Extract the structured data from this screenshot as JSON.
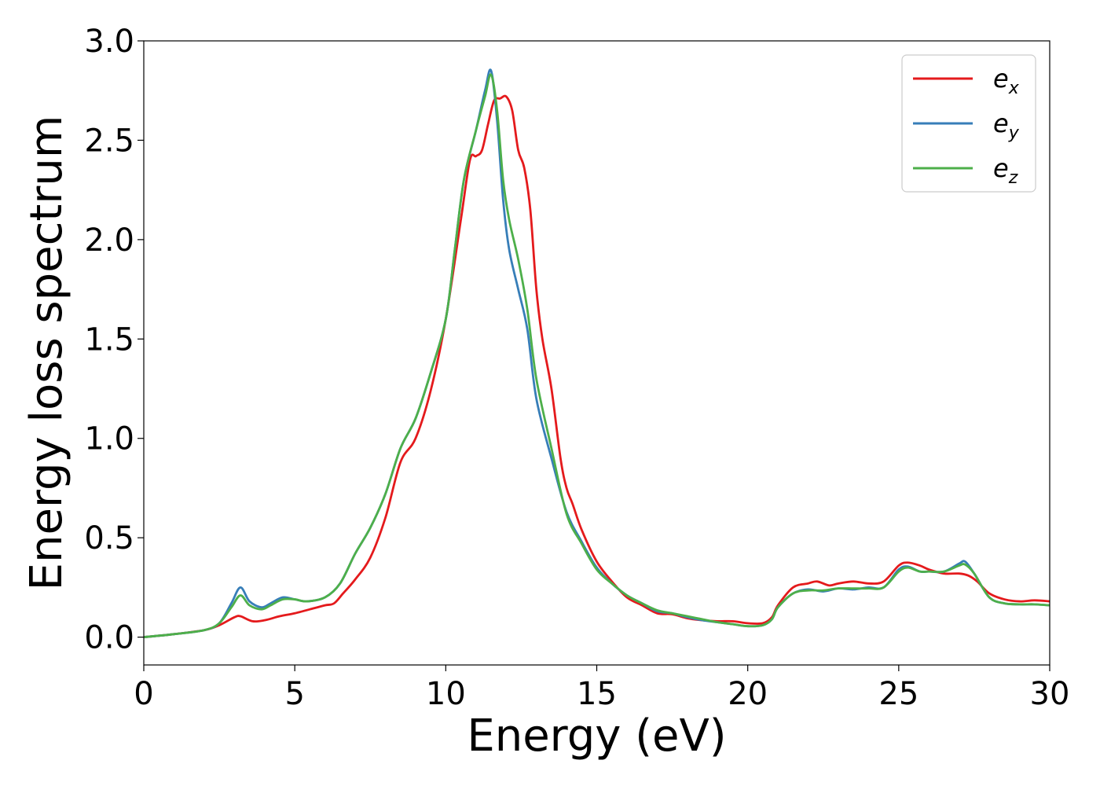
{
  "chart_data": {
    "type": "line",
    "title": "",
    "xlabel": "Energy (eV)",
    "ylabel": "Energy loss spectrum",
    "xlim": [
      0,
      30
    ],
    "ylim": [
      -0.14,
      3.0
    ],
    "xticks": [
      0,
      5,
      10,
      15,
      20,
      25,
      30
    ],
    "xtick_labels": [
      "0",
      "5",
      "10",
      "15",
      "20",
      "25",
      "30"
    ],
    "yticks": [
      0.0,
      0.5,
      1.0,
      1.5,
      2.0,
      2.5,
      3.0
    ],
    "ytick_labels": [
      "0.0",
      "0.5",
      "1.0",
      "1.5",
      "2.0",
      "2.5",
      "3.0"
    ],
    "grid": false,
    "legend_position": "top-right",
    "series": [
      {
        "name": "e_x",
        "legend_base": "e",
        "legend_sub": "x",
        "color": "#e41a1c",
        "x": [
          0,
          1,
          2,
          2.5,
          3,
          3.2,
          3.6,
          4,
          4.5,
          5,
          5.5,
          6,
          6.3,
          6.6,
          7,
          7.5,
          8,
          8.5,
          9,
          9.5,
          10,
          10.5,
          10.8,
          11,
          11.2,
          11.4,
          11.6,
          11.8,
          12,
          12.2,
          12.4,
          12.6,
          12.8,
          13,
          13.2,
          13.5,
          13.8,
          14,
          14.2,
          14.5,
          15,
          15.5,
          16,
          16.5,
          17,
          17.5,
          18,
          18.5,
          19,
          19.5,
          20,
          20.5,
          20.8,
          21,
          21.5,
          22,
          22.3,
          22.7,
          23,
          23.5,
          24,
          24.5,
          25,
          25.3,
          25.7,
          26,
          26.5,
          27,
          27.3,
          27.6,
          28,
          28.5,
          29,
          29.5,
          30
        ],
        "y": [
          0.0,
          0.015,
          0.035,
          0.06,
          0.1,
          0.105,
          0.08,
          0.085,
          0.105,
          0.12,
          0.14,
          0.16,
          0.17,
          0.22,
          0.29,
          0.4,
          0.6,
          0.88,
          1.0,
          1.24,
          1.6,
          2.1,
          2.4,
          2.42,
          2.45,
          2.58,
          2.7,
          2.71,
          2.72,
          2.65,
          2.45,
          2.36,
          2.15,
          1.75,
          1.5,
          1.25,
          0.9,
          0.75,
          0.67,
          0.54,
          0.38,
          0.28,
          0.2,
          0.16,
          0.12,
          0.115,
          0.095,
          0.085,
          0.08,
          0.08,
          0.07,
          0.07,
          0.1,
          0.16,
          0.25,
          0.27,
          0.28,
          0.26,
          0.27,
          0.28,
          0.27,
          0.28,
          0.36,
          0.375,
          0.36,
          0.34,
          0.32,
          0.32,
          0.31,
          0.28,
          0.22,
          0.19,
          0.18,
          0.185,
          0.18
        ]
      },
      {
        "name": "e_y",
        "legend_base": "e",
        "legend_sub": "y",
        "color": "#377eb8",
        "x": [
          0,
          1,
          2,
          2.5,
          2.9,
          3.2,
          3.5,
          3.9,
          4.2,
          4.6,
          5,
          5.4,
          6,
          6.5,
          7,
          7.5,
          8,
          8.5,
          9,
          9.5,
          10,
          10.3,
          10.6,
          11,
          11.3,
          11.5,
          11.7,
          11.9,
          12.1,
          12.4,
          12.7,
          13,
          13.5,
          14,
          14.5,
          15,
          15.5,
          16,
          16.5,
          17,
          17.5,
          18,
          18.5,
          19,
          19.5,
          20,
          20.5,
          20.8,
          21,
          21.5,
          22,
          22.5,
          23,
          23.5,
          24,
          24.5,
          25,
          25.3,
          25.7,
          26,
          26.5,
          27,
          27.2,
          27.5,
          28,
          28.5,
          29,
          29.5,
          30
        ],
        "y": [
          0.0,
          0.015,
          0.035,
          0.07,
          0.17,
          0.25,
          0.18,
          0.15,
          0.17,
          0.2,
          0.19,
          0.18,
          0.2,
          0.27,
          0.42,
          0.55,
          0.72,
          0.95,
          1.1,
          1.33,
          1.6,
          1.95,
          2.3,
          2.55,
          2.75,
          2.85,
          2.6,
          2.2,
          1.95,
          1.75,
          1.55,
          1.2,
          0.9,
          0.63,
          0.48,
          0.35,
          0.27,
          0.21,
          0.17,
          0.13,
          0.12,
          0.1,
          0.085,
          0.075,
          0.065,
          0.055,
          0.06,
          0.09,
          0.15,
          0.22,
          0.24,
          0.23,
          0.245,
          0.24,
          0.25,
          0.25,
          0.34,
          0.355,
          0.33,
          0.33,
          0.33,
          0.37,
          0.38,
          0.32,
          0.2,
          0.17,
          0.165,
          0.165,
          0.16
        ]
      },
      {
        "name": "e_z",
        "legend_base": "e",
        "legend_sub": "z",
        "color": "#4daf4a",
        "x": [
          0,
          1,
          2,
          2.5,
          2.9,
          3.2,
          3.5,
          3.9,
          4.2,
          4.6,
          5,
          5.4,
          6,
          6.5,
          7,
          7.5,
          8,
          8.5,
          9,
          9.5,
          10,
          10.3,
          10.6,
          11,
          11.3,
          11.5,
          11.7,
          11.9,
          12.1,
          12.4,
          12.7,
          13,
          13.5,
          14,
          14.5,
          15,
          15.5,
          16,
          16.5,
          17,
          17.5,
          18,
          18.5,
          19,
          19.5,
          20,
          20.5,
          20.8,
          21,
          21.5,
          22,
          22.5,
          23,
          23.5,
          24,
          24.5,
          25,
          25.3,
          25.7,
          26,
          26.5,
          27,
          27.2,
          27.5,
          28,
          28.5,
          29,
          29.5,
          30
        ],
        "y": [
          0.0,
          0.015,
          0.035,
          0.07,
          0.15,
          0.21,
          0.16,
          0.14,
          0.16,
          0.19,
          0.19,
          0.18,
          0.2,
          0.27,
          0.42,
          0.55,
          0.72,
          0.95,
          1.1,
          1.33,
          1.6,
          1.95,
          2.3,
          2.55,
          2.72,
          2.83,
          2.65,
          2.3,
          2.1,
          1.9,
          1.65,
          1.3,
          0.95,
          0.62,
          0.47,
          0.34,
          0.27,
          0.21,
          0.17,
          0.135,
          0.12,
          0.105,
          0.09,
          0.075,
          0.065,
          0.055,
          0.06,
          0.09,
          0.15,
          0.22,
          0.235,
          0.235,
          0.245,
          0.245,
          0.245,
          0.25,
          0.33,
          0.35,
          0.33,
          0.33,
          0.33,
          0.36,
          0.365,
          0.32,
          0.2,
          0.17,
          0.165,
          0.165,
          0.16
        ]
      }
    ]
  }
}
